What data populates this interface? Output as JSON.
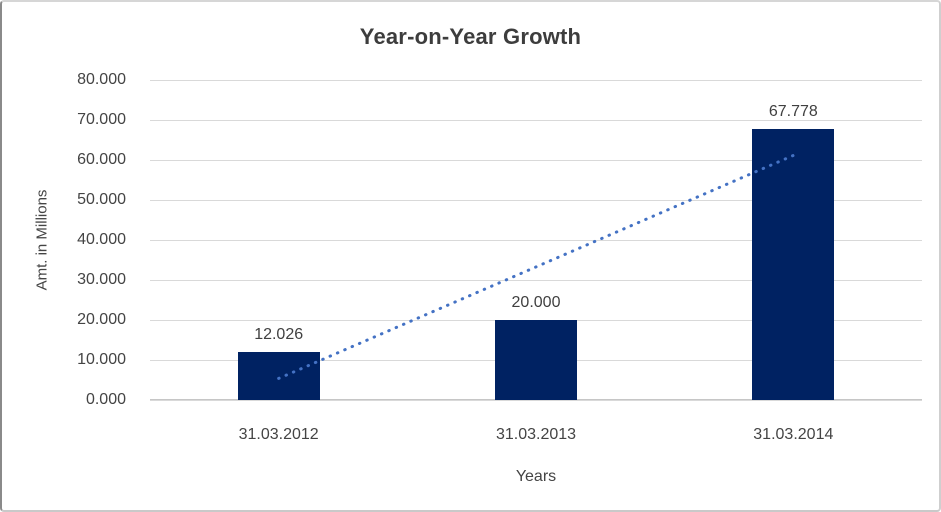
{
  "chart": {
    "title": "Year-on-Year Growth",
    "y_axis_title": "Amt. in Millions",
    "x_axis_title": "Years"
  },
  "chart_data": {
    "type": "bar",
    "title": "Year-on-Year Growth",
    "xlabel": "Years",
    "ylabel": "Amt. in Millions",
    "categories": [
      "31.03.2012",
      "31.03.2013",
      "31.03.2014"
    ],
    "values": [
      12.026,
      20.0,
      67.778
    ],
    "data_labels": [
      "12.026",
      "20.000",
      "67.778"
    ],
    "y_ticks": [
      "80.000",
      "70.000",
      "60.000",
      "50.000",
      "40.000",
      "30.000",
      "20.000",
      "10.000",
      "0.000"
    ],
    "ylim": [
      0,
      80
    ],
    "grid": true,
    "legend": false,
    "colors": {
      "bar": "#002262",
      "trendline": "#4472c4",
      "gridline": "#d9d9d9",
      "text": "#444444"
    },
    "trendline": {
      "type": "linear",
      "style": "dotted",
      "color": "#4472c4",
      "fitted_values": [
        5.392,
        33.268,
        61.144
      ]
    }
  }
}
